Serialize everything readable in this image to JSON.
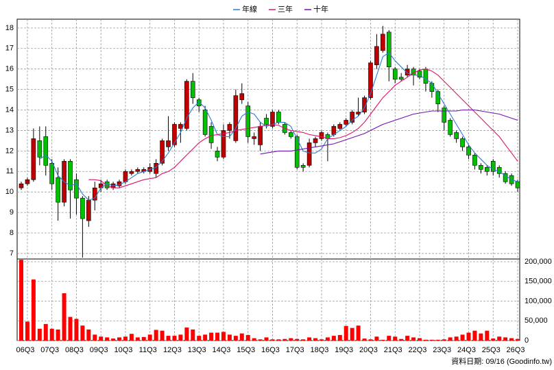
{
  "chart_data": [
    {
      "type": "candlestick",
      "source": "資料日期: 09/16 (Goodinfo.tw)",
      "categories": [
        null,
        "06Q3",
        null,
        null,
        null,
        "07Q3",
        null,
        null,
        null,
        "08Q3",
        null,
        null,
        null,
        "09Q3",
        null,
        null,
        null,
        "10Q3",
        null,
        null,
        null,
        "11Q3",
        null,
        null,
        null,
        "12Q3",
        null,
        null,
        null,
        "13Q3",
        null,
        null,
        null,
        "14Q3",
        null,
        null,
        null,
        "15Q3",
        null,
        null,
        null,
        "16Q3",
        null,
        null,
        null,
        "17Q3",
        null,
        null,
        null,
        "18Q3",
        null,
        null,
        null,
        "19Q3",
        null,
        null,
        null,
        "20Q3",
        null,
        null,
        null,
        "21Q3",
        null,
        null,
        null,
        "22Q3",
        null,
        null,
        null,
        "23Q3",
        null,
        null,
        null,
        "24Q3",
        null,
        null,
        null,
        "25Q3",
        null,
        null,
        null,
        "26Q3"
      ],
      "open": [
        10.2,
        10.4,
        10.6,
        12.5,
        12.7,
        11.4,
        10.7,
        9.5,
        11.5,
        10.6,
        9.7,
        8.6,
        9.6,
        10.2,
        10.5,
        10.2,
        10.3,
        10.5,
        10.9,
        11.0,
        11.0,
        11.0,
        10.9,
        11.4,
        12.2,
        12.3,
        13.1,
        13.1,
        15.4,
        14.5,
        14.0,
        13.2,
        12.0,
        11.7,
        13.0,
        12.5,
        14.5,
        14.2,
        12.6,
        12.3,
        13.6,
        13.2,
        13.9,
        13.3,
        12.9,
        12.7,
        11.3,
        11.3,
        12.4,
        12.6,
        12.8,
        12.8,
        13.1,
        13.3,
        13.4,
        13.8,
        13.9,
        14.6,
        16.2,
        16.9,
        17.8,
        16.0,
        15.6,
        15.7,
        16.0,
        15.9,
        16.0,
        15.3,
        14.9,
        14.1,
        13.5,
        12.9,
        12.6,
        12.2,
        11.8,
        11.3,
        11.2,
        11.5,
        11.2,
        10.9,
        10.8,
        10.5
      ],
      "high": [
        10.5,
        10.7,
        13.1,
        13.2,
        13.2,
        11.6,
        11.2,
        11.6,
        11.6,
        10.9,
        9.8,
        9.8,
        10.5,
        10.6,
        10.6,
        10.5,
        10.6,
        11.1,
        11.1,
        11.2,
        11.2,
        11.4,
        11.6,
        12.6,
        13.7,
        13.4,
        13.4,
        15.5,
        15.8,
        14.6,
        14.2,
        13.4,
        12.2,
        13.3,
        13.4,
        15.0,
        15.3,
        14.4,
        12.9,
        13.4,
        13.8,
        14.0,
        14.0,
        13.4,
        13.0,
        12.8,
        11.4,
        12.6,
        12.7,
        13.0,
        12.9,
        13.3,
        13.4,
        13.6,
        14.0,
        14.6,
        14.7,
        16.4,
        17.7,
        18.1,
        17.9,
        16.1,
        15.8,
        16.2,
        16.1,
        16.0,
        16.1,
        15.4,
        15.0,
        14.2,
        13.6,
        13.0,
        12.7,
        12.3,
        11.9,
        11.4,
        11.3,
        11.6,
        11.3,
        11.0,
        10.9,
        10.6
      ],
      "low": [
        10.1,
        10.3,
        10.5,
        11.3,
        10.8,
        10.1,
        8.6,
        9.3,
        8.7,
        8.9,
        6.8,
        8.3,
        9.1,
        10.0,
        10.1,
        10.1,
        10.2,
        10.4,
        10.8,
        10.9,
        10.9,
        10.9,
        10.7,
        11.3,
        12.0,
        12.2,
        12.4,
        13.0,
        14.3,
        13.9,
        12.7,
        12.1,
        11.5,
        11.6,
        12.6,
        12.4,
        14.3,
        12.4,
        12.3,
        12.0,
        13.1,
        13.1,
        13.3,
        12.8,
        12.6,
        11.1,
        11.0,
        11.2,
        12.2,
        12.5,
        11.5,
        12.7,
        13.0,
        13.2,
        13.3,
        13.7,
        13.8,
        14.5,
        16.0,
        16.8,
        15.4,
        15.3,
        15.4,
        15.6,
        15.2,
        15.5,
        14.9,
        14.6,
        13.9,
        13.0,
        12.7,
        12.4,
        12.0,
        11.6,
        11.1,
        10.9,
        10.8,
        10.8,
        10.7,
        10.4,
        10.3,
        10.0
      ],
      "close": [
        10.4,
        10.6,
        12.6,
        11.7,
        11.3,
        10.4,
        9.5,
        11.5,
        10.1,
        9.7,
        8.7,
        9.6,
        10.2,
        10.4,
        10.2,
        10.4,
        10.5,
        11.0,
        11.0,
        11.1,
        11.1,
        11.2,
        11.4,
        12.5,
        12.5,
        13.3,
        13.3,
        15.4,
        14.6,
        14.2,
        12.8,
        12.4,
        11.7,
        13.0,
        13.3,
        14.7,
        14.8,
        12.7,
        12.7,
        13.2,
        13.3,
        13.9,
        13.4,
        12.9,
        12.7,
        11.2,
        11.2,
        12.4,
        12.6,
        12.9,
        12.6,
        13.2,
        13.3,
        13.5,
        13.9,
        13.9,
        14.6,
        16.3,
        17.1,
        17.7,
        16.1,
        15.5,
        15.5,
        16.0,
        15.7,
        15.6,
        15.3,
        14.9,
        14.3,
        13.4,
        12.8,
        12.6,
        12.2,
        11.8,
        11.3,
        11.1,
        11.0,
        11.0,
        10.9,
        10.5,
        10.4,
        10.2
      ],
      "up_color": "#c00000",
      "down_color": "#00c000",
      "series": [
        {
          "name": "年線",
          "color": "#2a7bd6",
          "values": [
            null,
            null,
            null,
            11.6,
            11.8,
            11.5,
            10.8,
            10.5,
            10.3,
            10.4,
            9.9,
            9.6,
            9.7,
            10.2,
            10.4,
            10.3,
            10.35,
            10.5,
            10.7,
            10.9,
            11.0,
            11.1,
            11.2,
            11.5,
            11.9,
            12.4,
            12.9,
            13.6,
            14.1,
            14.4,
            14.1,
            13.5,
            12.8,
            12.7,
            12.7,
            13.1,
            13.7,
            13.9,
            13.8,
            13.4,
            13.2,
            13.3,
            13.4,
            13.4,
            13.2,
            12.6,
            12.0,
            11.9,
            11.9,
            12.1,
            12.6,
            12.8,
            13.0,
            13.2,
            13.5,
            13.7,
            14.1,
            14.8,
            15.7,
            16.6,
            16.8,
            16.4,
            16.1,
            15.8,
            15.7,
            15.7,
            15.5,
            15.3,
            14.8,
            14.3,
            13.8,
            13.3,
            12.8,
            12.3,
            11.9,
            11.6,
            11.3,
            11.1,
            11.0,
            10.8,
            10.6,
            10.5
          ]
        },
        {
          "name": "三年",
          "color": "#e0106a",
          "values": [
            null,
            null,
            null,
            null,
            null,
            null,
            null,
            null,
            null,
            null,
            null,
            10.6,
            10.6,
            10.55,
            10.3,
            10.2,
            10.2,
            10.3,
            10.4,
            10.5,
            10.6,
            10.65,
            10.7,
            10.9,
            11.0,
            11.2,
            11.5,
            11.8,
            12.1,
            12.4,
            12.6,
            12.75,
            12.8,
            12.85,
            12.9,
            13.0,
            13.05,
            13.1,
            13.15,
            13.2,
            13.25,
            13.3,
            13.25,
            13.1,
            13.0,
            12.95,
            12.9,
            12.8,
            12.75,
            12.7,
            12.6,
            12.6,
            12.65,
            12.75,
            12.9,
            13.1,
            13.4,
            13.8,
            14.2,
            14.6,
            14.9,
            15.2,
            15.4,
            15.6,
            15.8,
            15.95,
            16.0,
            15.9,
            15.7,
            15.4,
            15.1,
            14.8,
            14.5,
            14.2,
            13.9,
            13.6,
            13.3,
            13.0,
            12.7,
            12.3,
            11.9,
            11.5
          ]
        },
        {
          "name": "十年",
          "color": "#7010b0",
          "values": [
            null,
            null,
            null,
            null,
            null,
            null,
            null,
            null,
            null,
            null,
            null,
            null,
            null,
            null,
            null,
            null,
            null,
            null,
            null,
            null,
            null,
            null,
            null,
            null,
            null,
            null,
            null,
            null,
            null,
            null,
            null,
            null,
            null,
            null,
            null,
            null,
            null,
            null,
            null,
            11.85,
            11.9,
            11.95,
            12.0,
            12.0,
            12.0,
            12.05,
            12.1,
            12.15,
            12.2,
            12.25,
            12.3,
            12.35,
            12.45,
            12.55,
            12.65,
            12.75,
            12.85,
            13.0,
            13.15,
            13.3,
            13.4,
            13.5,
            13.6,
            13.7,
            13.8,
            13.85,
            13.9,
            13.95,
            13.95,
            13.95,
            13.95,
            13.95,
            14.0,
            14.0,
            14.0,
            13.95,
            13.9,
            13.85,
            13.8,
            13.7,
            13.6,
            13.5
          ]
        }
      ],
      "ylim": [
        6.73,
        18.43
      ],
      "yticks": [
        7,
        8,
        9,
        10,
        11,
        12,
        13,
        14,
        15,
        16,
        17,
        18
      ],
      "grid": true
    },
    {
      "type": "bar",
      "color": "#ff0000",
      "values": [
        205000,
        48000,
        155000,
        30000,
        42000,
        30000,
        28000,
        120000,
        60000,
        55000,
        38000,
        28000,
        15000,
        10000,
        8000,
        5000,
        8000,
        10000,
        17000,
        8000,
        9000,
        15000,
        27000,
        25000,
        12000,
        12000,
        15000,
        33000,
        28000,
        12000,
        15000,
        20000,
        20000,
        22000,
        15000,
        12000,
        18000,
        14000,
        6000,
        3000,
        8000,
        3000,
        3000,
        4000,
        6000,
        4000,
        3000,
        8000,
        6000,
        3000,
        8000,
        12000,
        14000,
        37000,
        32000,
        38000,
        5000,
        3000,
        10000,
        2000,
        12000,
        10000,
        4000,
        12000,
        8000,
        6000,
        2000,
        2000,
        2000,
        3000,
        8000,
        10000,
        15000,
        20000,
        25000,
        18000,
        25000,
        5000,
        10000,
        8000,
        6000,
        4000
      ],
      "ylim": [
        0,
        207000
      ],
      "yticks": [
        0,
        {
          "value": 50000,
          "label": "50,000"
        },
        {
          "value": 100000,
          "label": "100,000"
        },
        {
          "value": 150000,
          "label": "150,000"
        },
        {
          "value": 200000,
          "label": "200,000"
        }
      ],
      "grid": true
    }
  ]
}
